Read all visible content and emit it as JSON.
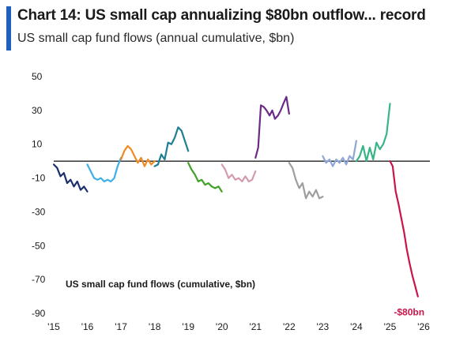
{
  "title": "Chart 14: US small cap annualizing $80bn outflow... record",
  "subtitle": "US small cap fund flows (annual cumulative, $bn)",
  "chart_data": {
    "type": "line",
    "title": "Chart 14: US small cap annualizing $80bn outflow... record",
    "subtitle": "US small cap fund flows (annual cumulative, $bn)",
    "inner_label": "US small cap fund flows (cumulative, $bn)",
    "ylim": [
      -90,
      50
    ],
    "yticks": [
      50,
      30,
      10,
      -10,
      -30,
      -50,
      -70,
      -90
    ],
    "xlim": [
      2015,
      2026
    ],
    "xticks": [
      "'15",
      "'16",
      "'17",
      "'18",
      "'19",
      "'20",
      "'21",
      "'22",
      "'23",
      "'24",
      "'25",
      "'26"
    ],
    "zero_line": true,
    "grid": false,
    "annotation": {
      "text": "-$80bn",
      "x": 2025.35,
      "y": -80,
      "color": "#c8154a"
    },
    "series": [
      {
        "color": "#1b2f6e",
        "points": [
          [
            2015.0,
            -2
          ],
          [
            2015.1,
            -4
          ],
          [
            2015.2,
            -9
          ],
          [
            2015.3,
            -7
          ],
          [
            2015.4,
            -13
          ],
          [
            2015.5,
            -11
          ],
          [
            2015.6,
            -15
          ],
          [
            2015.7,
            -12
          ],
          [
            2015.8,
            -17
          ],
          [
            2015.9,
            -15
          ],
          [
            2016.0,
            -18
          ]
        ]
      },
      {
        "color": "#3eaee6",
        "points": [
          [
            2016.0,
            -2
          ],
          [
            2016.1,
            -6
          ],
          [
            2016.2,
            -10
          ],
          [
            2016.3,
            -11
          ],
          [
            2016.4,
            -10
          ],
          [
            2016.5,
            -12
          ],
          [
            2016.6,
            -11
          ],
          [
            2016.7,
            -12
          ],
          [
            2016.8,
            -10
          ],
          [
            2016.9,
            -3
          ],
          [
            2017.0,
            2
          ]
        ]
      },
      {
        "color": "#ef8a22",
        "points": [
          [
            2017.0,
            1
          ],
          [
            2017.1,
            6
          ],
          [
            2017.2,
            9
          ],
          [
            2017.3,
            7
          ],
          [
            2017.4,
            3
          ],
          [
            2017.5,
            -1
          ],
          [
            2017.6,
            2
          ],
          [
            2017.7,
            -3
          ],
          [
            2017.8,
            1
          ],
          [
            2017.9,
            -2
          ],
          [
            2018.0,
            0
          ]
        ]
      },
      {
        "color": "#1d7f92",
        "points": [
          [
            2018.0,
            -3
          ],
          [
            2018.1,
            -2
          ],
          [
            2018.2,
            4
          ],
          [
            2018.3,
            1
          ],
          [
            2018.4,
            11
          ],
          [
            2018.5,
            10
          ],
          [
            2018.6,
            14
          ],
          [
            2018.7,
            20
          ],
          [
            2018.8,
            18
          ],
          [
            2018.9,
            12
          ],
          [
            2019.0,
            6
          ]
        ]
      },
      {
        "color": "#3ea226",
        "points": [
          [
            2019.0,
            -1
          ],
          [
            2019.1,
            -5
          ],
          [
            2019.2,
            -8
          ],
          [
            2019.3,
            -12
          ],
          [
            2019.4,
            -11
          ],
          [
            2019.5,
            -14
          ],
          [
            2019.6,
            -13
          ],
          [
            2019.7,
            -15
          ],
          [
            2019.8,
            -16
          ],
          [
            2019.9,
            -15
          ],
          [
            2020.0,
            -18
          ]
        ]
      },
      {
        "color": "#d59aac",
        "points": [
          [
            2020.0,
            -2
          ],
          [
            2020.1,
            -5
          ],
          [
            2020.2,
            -10
          ],
          [
            2020.3,
            -8
          ],
          [
            2020.4,
            -11
          ],
          [
            2020.5,
            -10
          ],
          [
            2020.6,
            -12
          ],
          [
            2020.7,
            -9
          ],
          [
            2020.8,
            -12
          ],
          [
            2020.9,
            -11
          ],
          [
            2021.0,
            -6
          ]
        ]
      },
      {
        "color": "#6b2a86",
        "points": [
          [
            2021.0,
            2
          ],
          [
            2021.08,
            8
          ],
          [
            2021.16,
            33
          ],
          [
            2021.25,
            32
          ],
          [
            2021.33,
            30
          ],
          [
            2021.42,
            27
          ],
          [
            2021.5,
            30
          ],
          [
            2021.58,
            25
          ],
          [
            2021.67,
            27
          ],
          [
            2021.75,
            30
          ],
          [
            2021.83,
            34
          ],
          [
            2021.92,
            38
          ],
          [
            2022.0,
            28
          ]
        ]
      },
      {
        "color": "#9e9e9e",
        "points": [
          [
            2022.0,
            -1
          ],
          [
            2022.1,
            -4
          ],
          [
            2022.2,
            -11
          ],
          [
            2022.3,
            -16
          ],
          [
            2022.4,
            -13
          ],
          [
            2022.5,
            -22
          ],
          [
            2022.6,
            -18
          ],
          [
            2022.7,
            -21
          ],
          [
            2022.8,
            -17
          ],
          [
            2022.9,
            -22
          ],
          [
            2023.0,
            -21
          ]
        ]
      },
      {
        "color": "#8ea7d6",
        "points": [
          [
            2023.0,
            3
          ],
          [
            2023.1,
            -1
          ],
          [
            2023.2,
            1
          ],
          [
            2023.3,
            -3
          ],
          [
            2023.4,
            1
          ],
          [
            2023.5,
            -1
          ],
          [
            2023.6,
            2
          ],
          [
            2023.7,
            -2
          ],
          [
            2023.8,
            3
          ],
          [
            2023.9,
            1
          ],
          [
            2024.0,
            12
          ]
        ]
      },
      {
        "color": "#38b487",
        "points": [
          [
            2024.0,
            0
          ],
          [
            2024.1,
            3
          ],
          [
            2024.2,
            9
          ],
          [
            2024.3,
            0
          ],
          [
            2024.4,
            8
          ],
          [
            2024.5,
            1
          ],
          [
            2024.6,
            11
          ],
          [
            2024.7,
            7
          ],
          [
            2024.8,
            10
          ],
          [
            2024.9,
            16
          ],
          [
            2025.0,
            34
          ]
        ]
      },
      {
        "color": "#c8154a",
        "points": [
          [
            2025.0,
            0
          ],
          [
            2025.08,
            -3
          ],
          [
            2025.17,
            -18
          ],
          [
            2025.25,
            -25
          ],
          [
            2025.33,
            -33
          ],
          [
            2025.42,
            -42
          ],
          [
            2025.5,
            -52
          ],
          [
            2025.58,
            -60
          ],
          [
            2025.67,
            -68
          ],
          [
            2025.75,
            -74
          ],
          [
            2025.83,
            -80
          ]
        ]
      }
    ]
  }
}
